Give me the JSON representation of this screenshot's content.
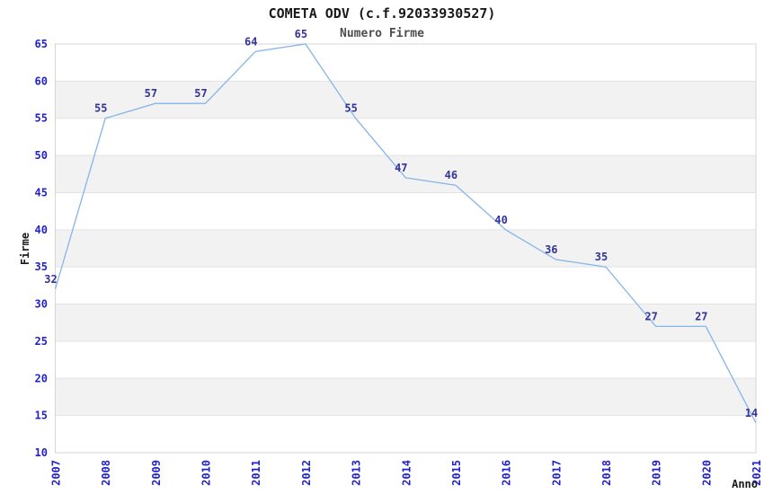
{
  "chart_data": {
    "type": "line",
    "title": "COMETA ODV (c.f.92033930527)",
    "subtitle": "Numero Firme",
    "xlabel": "Anno",
    "ylabel": "Firme",
    "categories": [
      "2007",
      "2008",
      "2009",
      "2010",
      "2011",
      "2012",
      "2013",
      "2014",
      "2015",
      "2016",
      "2017",
      "2018",
      "2019",
      "2020",
      "2021"
    ],
    "values": [
      32,
      55,
      57,
      57,
      64,
      65,
      55,
      47,
      46,
      40,
      36,
      35,
      27,
      27,
      14
    ],
    "ylim": [
      10,
      65
    ],
    "ytick_step": 5,
    "yticks": [
      10,
      15,
      20,
      25,
      30,
      35,
      40,
      45,
      50,
      55,
      60,
      65
    ],
    "grid": "horizontal",
    "legend": "none",
    "point_labels_shown": true,
    "colors": {
      "line": "#85b5e8",
      "tick_labels": "#2222cc",
      "point_labels": "#333399",
      "title": "#1a1a1a",
      "subtitle": "#4d4d4d",
      "axis_titles": "#1a1a1a",
      "band": "#f2f2f2",
      "gridline": "#e3e3e3",
      "plot_border": "#d6d6d6",
      "background": "#ffffff"
    }
  }
}
